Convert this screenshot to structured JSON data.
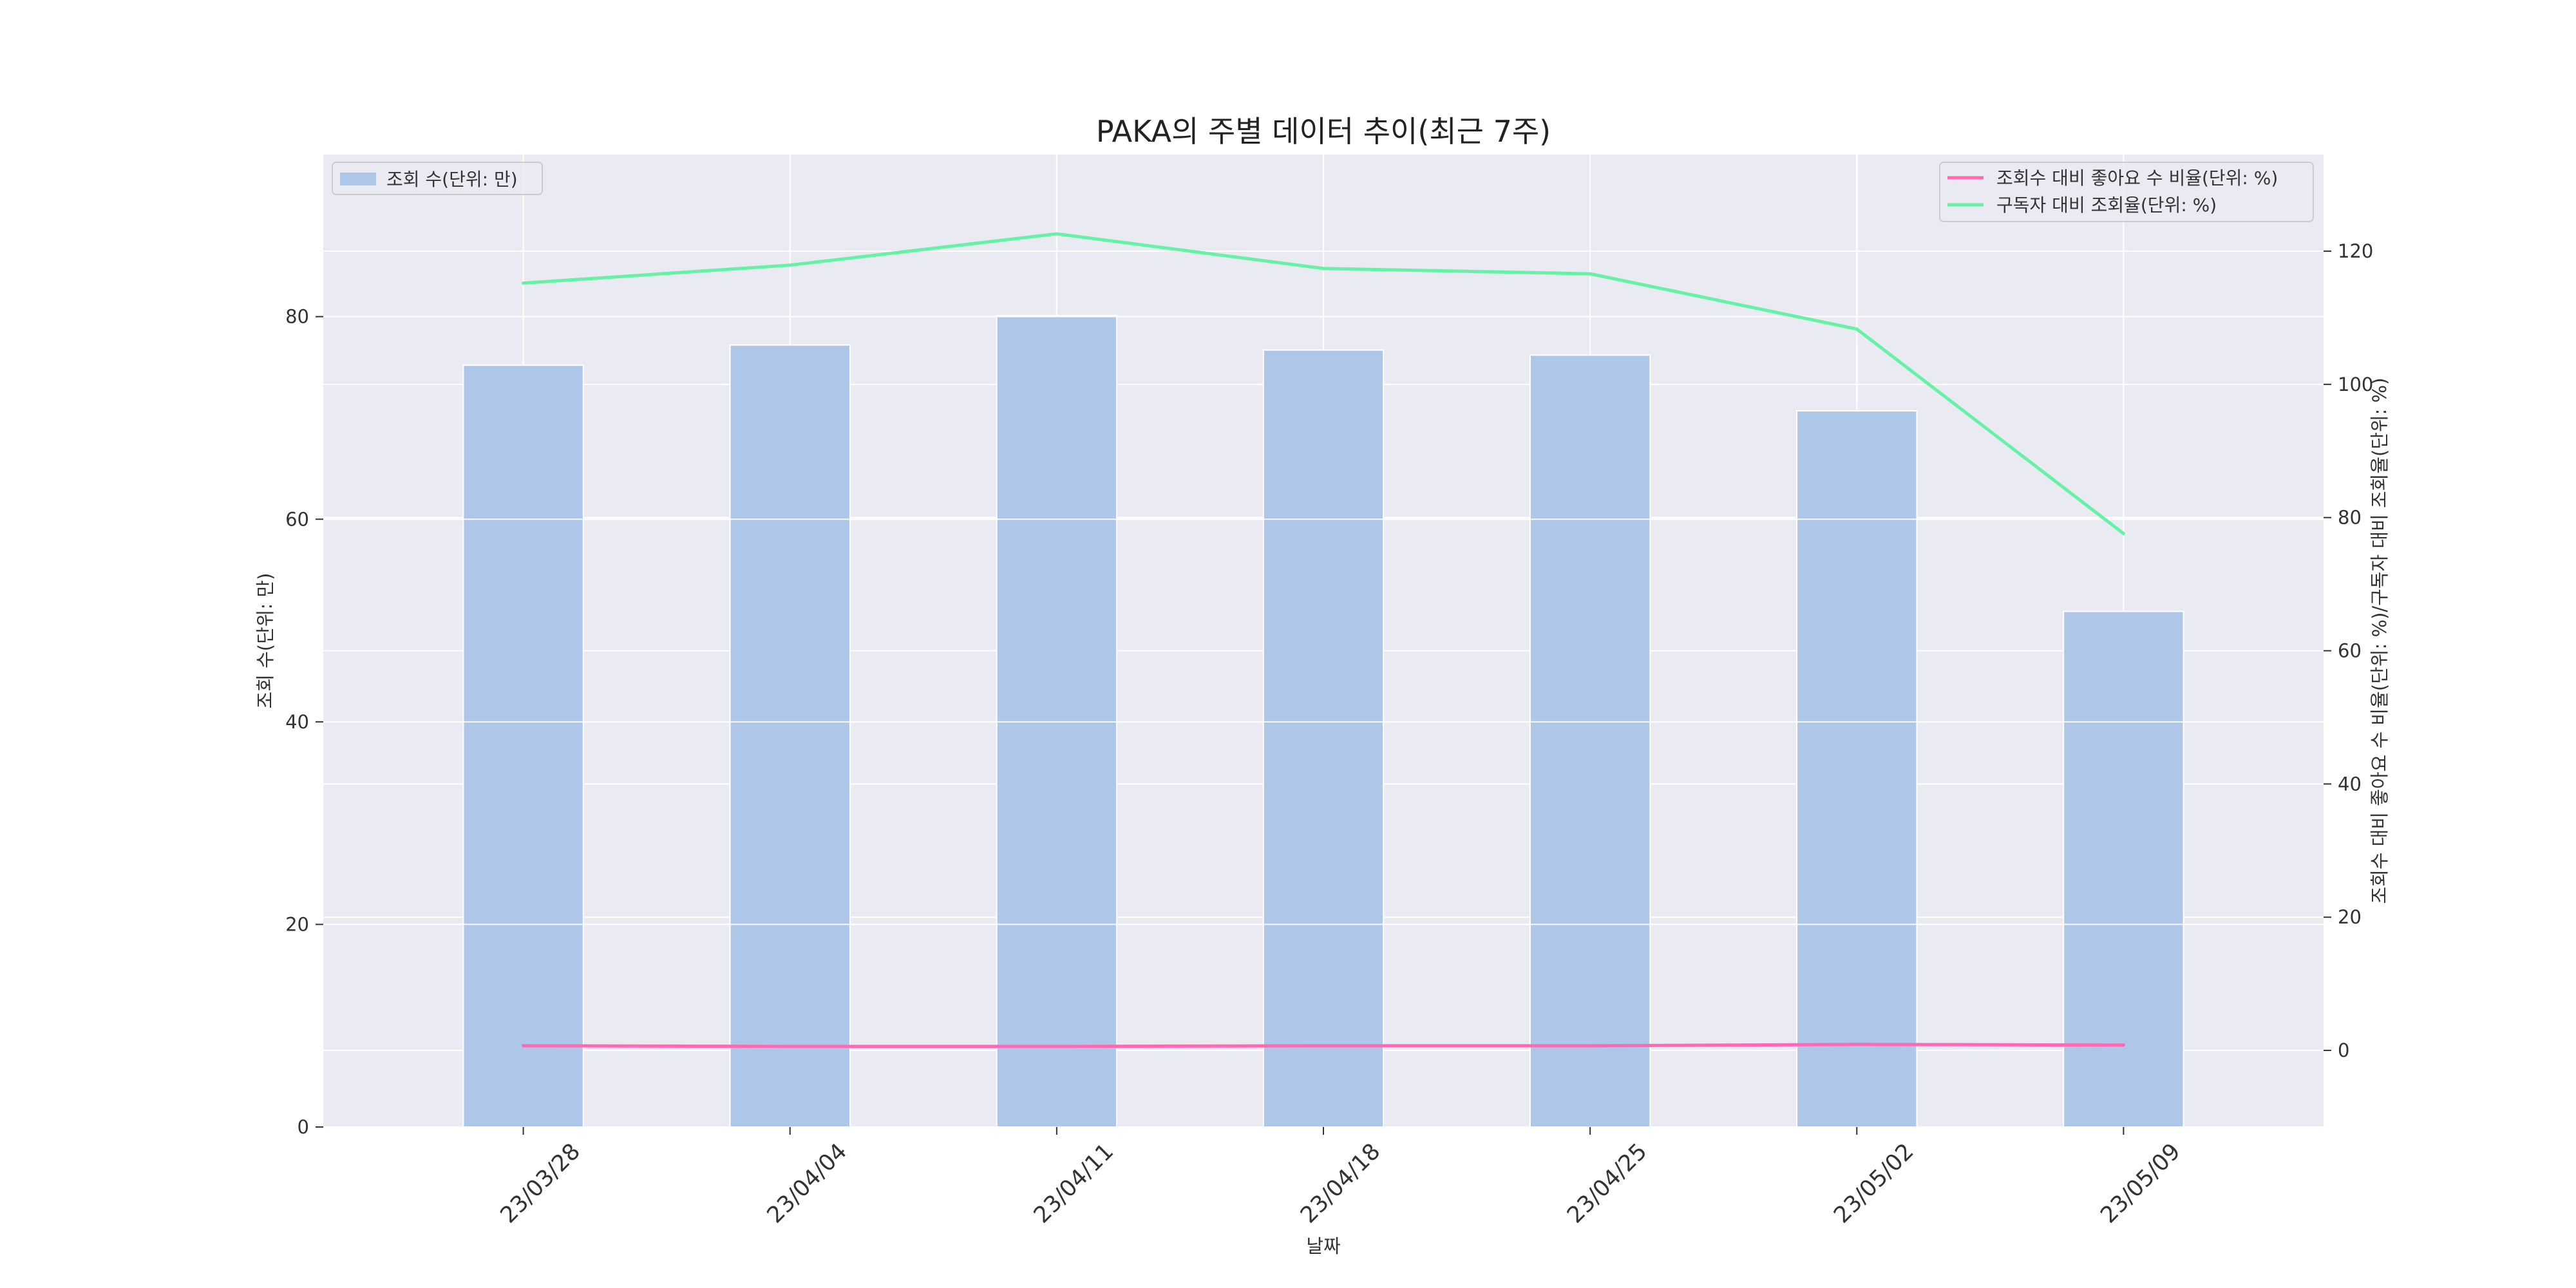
{
  "chart_data": {
    "type": "bar",
    "title": "PAKA의 주별 데이터 추이(최근 7주)",
    "xlabel": "날짜",
    "ylabel": "조회 수(단위: 만)",
    "y2label": "조회수 대비 좋아요 수 비율(단위: %)/구독자 대비 조회율(단위: %)",
    "categories": [
      "23/03/28",
      "23/04/04",
      "23/04/11",
      "23/04/18",
      "23/04/25",
      "23/05/02",
      "23/05/09"
    ],
    "ylim": [
      0,
      96
    ],
    "y2lim": [
      -11.5,
      134.5
    ],
    "yticks": [
      0,
      20,
      40,
      60,
      80
    ],
    "y2ticks": [
      0,
      20,
      40,
      60,
      80,
      100,
      120
    ],
    "grid": true,
    "series": [
      {
        "name": "조회 수(단위: 만)",
        "kind": "bar",
        "axis": "left",
        "color": "#aec6e8",
        "values": [
          75.2,
          77.2,
          80.1,
          76.7,
          76.2,
          70.7,
          50.9
        ]
      },
      {
        "name": "조회수 대비 좋아요 수 비율(단위: %)",
        "kind": "line",
        "axis": "right",
        "color": "#ff69b4",
        "values": [
          0.7,
          0.6,
          0.6,
          0.7,
          0.7,
          0.9,
          0.8
        ]
      },
      {
        "name": "구독자 대비 조회율(단위: %)",
        "kind": "line",
        "axis": "right",
        "color": "#66f2a6",
        "values": [
          115.2,
          117.9,
          122.6,
          117.4,
          116.6,
          108.3,
          77.6
        ]
      }
    ],
    "legend_left": "upper-left",
    "legend_right": "upper-right",
    "colors": {
      "background": "#eaeaf2",
      "grid": "#ffffff"
    }
  }
}
